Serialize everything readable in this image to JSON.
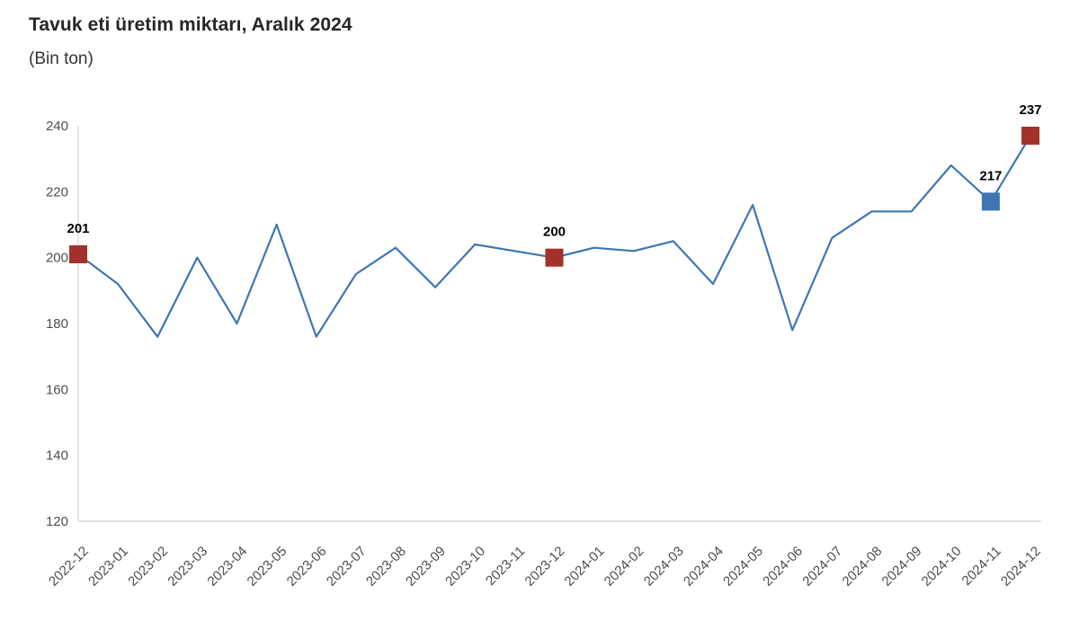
{
  "title": "Tavuk eti üretim miktarı, Aralık 2024",
  "subtitle": "(Bin ton)",
  "chart_data": {
    "type": "line",
    "title": "Tavuk eti üretim miktarı, Aralık 2024",
    "subtitle": "(Bin ton)",
    "xlabel": "",
    "ylabel": "",
    "categories": [
      "2022-12",
      "2023-01",
      "2023-02",
      "2023-03",
      "2023-04",
      "2023-05",
      "2023-06",
      "2023-07",
      "2023-08",
      "2023-09",
      "2023-10",
      "2023-11",
      "2023-12",
      "2024-01",
      "2024-02",
      "2024-03",
      "2024-04",
      "2024-05",
      "2024-06",
      "2024-07",
      "2024-08",
      "2024-09",
      "2024-10",
      "2024-11",
      "2024-12"
    ],
    "values": [
      201,
      192,
      176,
      200,
      180,
      210,
      176,
      195,
      203,
      191,
      204,
      202,
      200,
      203,
      202,
      205,
      192,
      216,
      178,
      206,
      214,
      214,
      228,
      217,
      237
    ],
    "ylim": [
      120,
      240
    ],
    "yticks": [
      240,
      220,
      200,
      180,
      160,
      140,
      120
    ],
    "grid": false,
    "legend": false,
    "line_color": "#3e76b3",
    "marker_red": "#a3312a",
    "marker_blue": "#3e76b3",
    "axis_line_color": "#d9d9d9",
    "tick_label_color": "#4d4d4d",
    "labeled_points": [
      {
        "index": 0,
        "label": "201",
        "marker": "red"
      },
      {
        "index": 12,
        "label": "200",
        "marker": "red"
      },
      {
        "index": 23,
        "label": "217",
        "marker": "blue"
      },
      {
        "index": 24,
        "label": "237",
        "marker": "red"
      }
    ]
  }
}
